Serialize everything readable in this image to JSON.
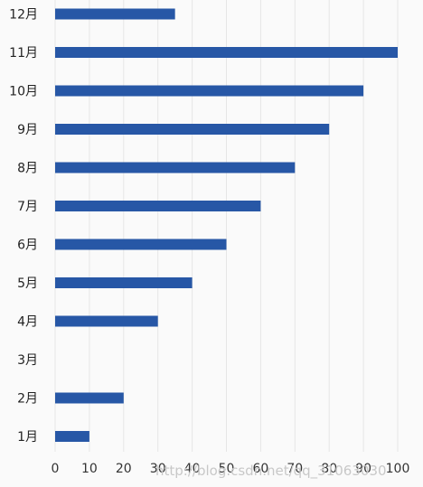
{
  "chart_data": {
    "type": "bar",
    "orientation": "horizontal",
    "categories": [
      "1月",
      "2月",
      "3月",
      "4月",
      "5月",
      "6月",
      "7月",
      "8月",
      "9月",
      "10月",
      "11月",
      "12月"
    ],
    "values": [
      10,
      20,
      0,
      30,
      40,
      50,
      60,
      70,
      80,
      90,
      100,
      35
    ],
    "xlim": [
      0,
      100
    ],
    "xticks": [
      0,
      10,
      20,
      30,
      40,
      50,
      60,
      70,
      80,
      90,
      100
    ],
    "grid": true,
    "bar_color": "#2757a6",
    "grid_color": "#e6e6e6"
  },
  "watermark": "http://blog.csdn.net/qq_31063030"
}
